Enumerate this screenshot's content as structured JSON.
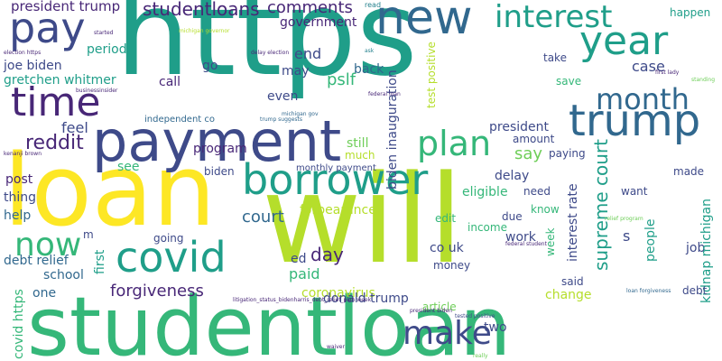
{
  "palette": {
    "purple": "#482777",
    "indigo": "#3e4a89",
    "blue": "#31688e",
    "teal": "#26828e",
    "sea": "#1f9e89",
    "green": "#35b779",
    "lime": "#6ece58",
    "yellowgreen": "#b5de2b",
    "yellow": "#fde725"
  },
  "words": [
    {
      "text": "https",
      "size": 130,
      "color": "sea"
    },
    {
      "text": "will",
      "size": 135,
      "color": "yellowgreen"
    },
    {
      "text": "studentloan",
      "size": 90,
      "color": "green"
    },
    {
      "text": "loan",
      "size": 110,
      "color": "yellow"
    },
    {
      "text": "payment",
      "size": 62,
      "color": "indigo"
    },
    {
      "text": "borrower",
      "size": 46,
      "color": "sea"
    },
    {
      "text": "new",
      "size": 52,
      "color": "blue"
    },
    {
      "text": "year",
      "size": 44,
      "color": "sea"
    },
    {
      "text": "trump",
      "size": 48,
      "color": "blue"
    },
    {
      "text": "covid",
      "size": 46,
      "color": "sea"
    },
    {
      "text": "time",
      "size": 44,
      "color": "purple"
    },
    {
      "text": "pay",
      "size": 46,
      "color": "indigo"
    },
    {
      "text": "interest",
      "size": 34,
      "color": "sea"
    },
    {
      "text": "month",
      "size": 32,
      "color": "blue"
    },
    {
      "text": "plan",
      "size": 38,
      "color": "green"
    },
    {
      "text": "now",
      "size": 36,
      "color": "green"
    },
    {
      "text": "make",
      "size": 36,
      "color": "indigo"
    },
    {
      "text": "reddit",
      "size": 22,
      "color": "purple"
    },
    {
      "text": "president trump",
      "size": 15,
      "color": "purple"
    },
    {
      "text": "studentloans",
      "size": 20,
      "color": "purple"
    },
    {
      "text": "comments",
      "size": 18,
      "color": "purple"
    },
    {
      "text": "read",
      "size": 8,
      "color": "teal"
    },
    {
      "text": "pslf",
      "size": 18,
      "color": "green"
    },
    {
      "text": "end",
      "size": 16,
      "color": "indigo"
    },
    {
      "text": "government",
      "size": 14,
      "color": "purple"
    },
    {
      "text": "period",
      "size": 14,
      "color": "sea"
    },
    {
      "text": "joe biden",
      "size": 14,
      "color": "indigo"
    },
    {
      "text": "gretchen whitmer",
      "size": 14,
      "color": "sea"
    },
    {
      "text": "may",
      "size": 14,
      "color": "indigo"
    },
    {
      "text": "back",
      "size": 14,
      "color": "blue"
    },
    {
      "text": "go",
      "size": 14,
      "color": "indigo"
    },
    {
      "text": "call",
      "size": 14,
      "color": "purple"
    },
    {
      "text": "even",
      "size": 14,
      "color": "indigo"
    },
    {
      "text": "independent co",
      "size": 10,
      "color": "blue"
    },
    {
      "text": "feel",
      "size": 16,
      "color": "indigo"
    },
    {
      "text": "program",
      "size": 14,
      "color": "purple"
    },
    {
      "text": "still",
      "size": 14,
      "color": "lime"
    },
    {
      "text": "much",
      "size": 12,
      "color": "yellowgreen"
    },
    {
      "text": "monthly payment",
      "size": 10,
      "color": "indigo"
    },
    {
      "text": "biden",
      "size": 12,
      "color": "indigo"
    },
    {
      "text": "see",
      "size": 14,
      "color": "green"
    },
    {
      "text": "post",
      "size": 14,
      "color": "purple"
    },
    {
      "text": "thing",
      "size": 14,
      "color": "indigo"
    },
    {
      "text": "help",
      "size": 14,
      "color": "blue"
    },
    {
      "text": "court",
      "size": 18,
      "color": "blue"
    },
    {
      "text": "forbearance",
      "size": 14,
      "color": "yellowgreen"
    },
    {
      "text": "biden inauguration",
      "size": 14,
      "color": "indigo"
    },
    {
      "text": "test positive",
      "size": 12,
      "color": "yellowgreen"
    },
    {
      "text": "president",
      "size": 14,
      "color": "indigo"
    },
    {
      "text": "amount",
      "size": 12,
      "color": "indigo"
    },
    {
      "text": "say",
      "size": 18,
      "color": "lime"
    },
    {
      "text": "paying",
      "size": 12,
      "color": "indigo"
    },
    {
      "text": "delay",
      "size": 14,
      "color": "indigo"
    },
    {
      "text": "eligible",
      "size": 14,
      "color": "green"
    },
    {
      "text": "need",
      "size": 12,
      "color": "indigo"
    },
    {
      "text": "interest rate",
      "size": 14,
      "color": "indigo"
    },
    {
      "text": "supreme court",
      "size": 20,
      "color": "sea"
    },
    {
      "text": "happen",
      "size": 12,
      "color": "sea"
    },
    {
      "text": "take",
      "size": 12,
      "color": "indigo"
    },
    {
      "text": "save",
      "size": 12,
      "color": "green"
    },
    {
      "text": "case",
      "size": 16,
      "color": "indigo"
    },
    {
      "text": "made",
      "size": 12,
      "color": "indigo"
    },
    {
      "text": "want",
      "size": 12,
      "color": "indigo"
    },
    {
      "text": "people",
      "size": 14,
      "color": "sea"
    },
    {
      "text": "job",
      "size": 14,
      "color": "indigo"
    },
    {
      "text": "kidnap michigan",
      "size": 14,
      "color": "sea"
    },
    {
      "text": "debt",
      "size": 12,
      "color": "indigo"
    },
    {
      "text": "know",
      "size": 12,
      "color": "green"
    },
    {
      "text": "due",
      "size": 12,
      "color": "indigo"
    },
    {
      "text": "income",
      "size": 12,
      "color": "green"
    },
    {
      "text": "week",
      "size": 12,
      "color": "green"
    },
    {
      "text": "s",
      "size": 16,
      "color": "indigo"
    },
    {
      "text": "said",
      "size": 12,
      "color": "indigo"
    },
    {
      "text": "edit",
      "size": 12,
      "color": "green"
    },
    {
      "text": "work",
      "size": 14,
      "color": "indigo"
    },
    {
      "text": "co uk",
      "size": 14,
      "color": "indigo"
    },
    {
      "text": "money",
      "size": 12,
      "color": "indigo"
    },
    {
      "text": "article",
      "size": 12,
      "color": "lime"
    },
    {
      "text": "change",
      "size": 14,
      "color": "yellowgreen"
    },
    {
      "text": "two",
      "size": 14,
      "color": "indigo"
    },
    {
      "text": "day",
      "size": 20,
      "color": "purple"
    },
    {
      "text": "ed",
      "size": 14,
      "color": "indigo"
    },
    {
      "text": "paid",
      "size": 16,
      "color": "green"
    },
    {
      "text": "forgiveness",
      "size": 18,
      "color": "purple"
    },
    {
      "text": "coronavirus",
      "size": 14,
      "color": "yellowgreen"
    },
    {
      "text": "donald trump",
      "size": 14,
      "color": "indigo"
    },
    {
      "text": "debt relief",
      "size": 14,
      "color": "blue"
    },
    {
      "text": "school",
      "size": 14,
      "color": "blue"
    },
    {
      "text": "one",
      "size": 14,
      "color": "blue"
    },
    {
      "text": "covid https",
      "size": 14,
      "color": "green"
    },
    {
      "text": "first",
      "size": 14,
      "color": "sea"
    },
    {
      "text": "going",
      "size": 12,
      "color": "indigo"
    },
    {
      "text": "m",
      "size": 12,
      "color": "indigo"
    },
    {
      "text": "loan forgiveness",
      "size": 6,
      "color": "blue"
    },
    {
      "text": "litigation_status_bidenharris_debt_relief_plan week",
      "size": 6,
      "color": "purple"
    },
    {
      "text": "michigan gov",
      "size": 6,
      "color": "blue"
    },
    {
      "text": "trump suggests",
      "size": 6,
      "color": "blue"
    },
    {
      "text": "federal student",
      "size": 6,
      "color": "purple"
    },
    {
      "text": "tested positive",
      "size": 6,
      "color": "indigo"
    },
    {
      "text": "president biden",
      "size": 6,
      "color": "purple"
    },
    {
      "text": "election https",
      "size": 6,
      "color": "purple"
    },
    {
      "text": "businessinsider",
      "size": 6,
      "color": "purple"
    },
    {
      "text": "first lady",
      "size": 6,
      "color": "purple"
    },
    {
      "text": "standing",
      "size": 6,
      "color": "lime"
    },
    {
      "text": "relief program",
      "size": 6,
      "color": "lime"
    },
    {
      "text": "kenanji brown",
      "size": 6,
      "color": "purple"
    },
    {
      "text": "waiver",
      "size": 6,
      "color": "purple"
    },
    {
      "text": "federal loan",
      "size": 6,
      "color": "purple"
    },
    {
      "text": "delay election",
      "size": 6,
      "color": "purple"
    },
    {
      "text": "michigan governor",
      "size": 6,
      "color": "yellowgreen"
    },
    {
      "text": "really",
      "size": 6,
      "color": "lime"
    },
    {
      "text": "started",
      "size": 6,
      "color": "purple"
    },
    {
      "text": "ask",
      "size": 6,
      "color": "teal"
    }
  ]
}
